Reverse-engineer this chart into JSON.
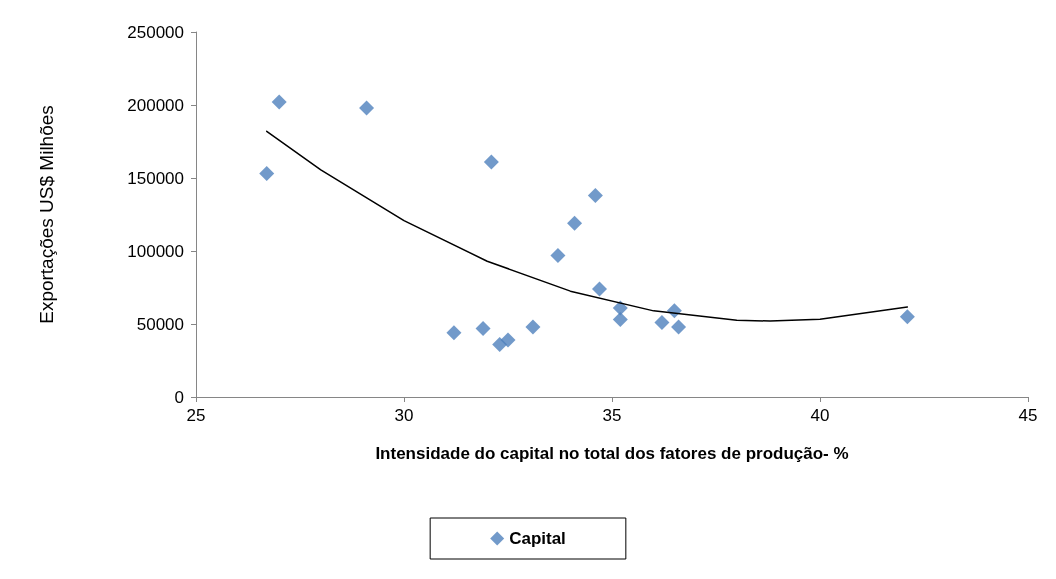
{
  "chart_data": {
    "type": "scatter",
    "xlabel": "Intensidade do capital no total dos fatores de produção- %",
    "ylabel": "Exportações US$ Milhões",
    "xlim": [
      25,
      45
    ],
    "xticks": [
      25,
      30,
      35,
      40,
      45
    ],
    "ylim": [
      0,
      250000
    ],
    "yticks": [
      0,
      50000,
      100000,
      150000,
      200000,
      250000
    ],
    "grid": false,
    "legend": "bottom",
    "marker": "diamond",
    "series": [
      {
        "name": "Capital",
        "color": "#4f81bd",
        "x": [
          26.7,
          27.0,
          29.1,
          32.1,
          31.2,
          31.9,
          32.3,
          32.5,
          33.1,
          33.7,
          34.1,
          34.6,
          34.7,
          35.2,
          35.2,
          36.2,
          36.5,
          36.6,
          42.1
        ],
        "values": [
          153000,
          202000,
          198000,
          161000,
          44000,
          47000,
          36000,
          39000,
          48000,
          97000,
          119000,
          138000,
          74000,
          61000,
          53000,
          51000,
          59000,
          48000,
          55000
        ]
      },
      {
        "type": "line",
        "color": "#000000",
        "marker": "none",
        "line_style": "solid",
        "x": [
          26.7,
          28,
          30,
          32,
          34,
          36,
          38,
          38.8,
          40,
          42.1
        ],
        "values": [
          182000,
          155600,
          120800,
          93000,
          72500,
          59000,
          52600,
          52000,
          53300,
          61700
        ]
      }
    ]
  }
}
